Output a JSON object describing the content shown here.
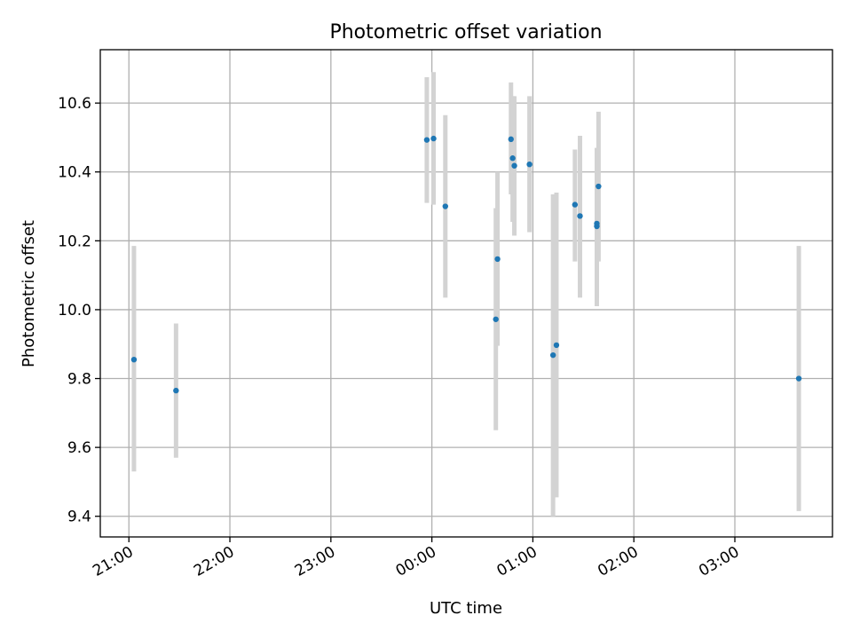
{
  "chart_data": {
    "type": "scatter",
    "title": "Photometric offset variation",
    "xlabel": "UTC time",
    "ylabel": "Photometric offset",
    "grid": true,
    "x_unit": "UTC",
    "xlim": [
      "20:43",
      "03:58"
    ],
    "ylim": [
      9.34,
      10.755
    ],
    "x_ticks": [
      "21:00",
      "22:00",
      "23:00",
      "00:00",
      "01:00",
      "02:00",
      "03:00"
    ],
    "y_ticks": [
      9.4,
      9.6,
      9.8,
      10.0,
      10.2,
      10.4,
      10.6
    ],
    "y_tick_labels": [
      "9.4",
      "9.6",
      "9.8",
      "10.0",
      "10.2",
      "10.4",
      "10.6"
    ],
    "colors": {
      "point": "#1f77b4",
      "errorbar": "#d3d3d3"
    },
    "series": [
      {
        "points": [
          {
            "x": "21:03",
            "y": 9.855,
            "err_low": 9.53,
            "err_high": 10.185
          },
          {
            "x": "21:28",
            "y": 9.765,
            "err_low": 9.57,
            "err_high": 9.96
          },
          {
            "x": "23:57",
            "y": 10.493,
            "err_low": 10.31,
            "err_high": 10.675
          },
          {
            "x": "00:01",
            "y": 10.497,
            "err_low": 10.305,
            "err_high": 10.69
          },
          {
            "x": "00:08",
            "y": 10.3,
            "err_low": 10.035,
            "err_high": 10.565
          },
          {
            "x": "00:38",
            "y": 9.972,
            "err_low": 9.65,
            "err_high": 10.295
          },
          {
            "x": "00:39",
            "y": 10.147,
            "err_low": 9.895,
            "err_high": 10.4
          },
          {
            "x": "00:47",
            "y": 10.495,
            "err_low": 10.335,
            "err_high": 10.66
          },
          {
            "x": "00:48",
            "y": 10.44,
            "err_low": 10.255,
            "err_high": 10.62
          },
          {
            "x": "00:49",
            "y": 10.418,
            "err_low": 10.215,
            "err_high": 10.62
          },
          {
            "x": "00:58",
            "y": 10.422,
            "err_low": 10.225,
            "err_high": 10.62
          },
          {
            "x": "01:12",
            "y": 9.868,
            "err_low": 9.4,
            "err_high": 10.335
          },
          {
            "x": "01:14",
            "y": 9.897,
            "err_low": 9.455,
            "err_high": 10.34
          },
          {
            "x": "01:25",
            "y": 10.305,
            "err_low": 10.14,
            "err_high": 10.465
          },
          {
            "x": "01:28",
            "y": 10.272,
            "err_low": 10.035,
            "err_high": 10.505
          },
          {
            "x": "01:38",
            "y": 10.242,
            "err_low": 10.01,
            "err_high": 10.47
          },
          {
            "x": "01:38",
            "y": 10.25,
            "err_low": 10.035,
            "err_high": 10.465
          },
          {
            "x": "01:39",
            "y": 10.358,
            "err_low": 10.14,
            "err_high": 10.575
          },
          {
            "x": "03:38",
            "y": 9.8,
            "err_low": 9.415,
            "err_high": 10.185
          }
        ]
      }
    ]
  }
}
